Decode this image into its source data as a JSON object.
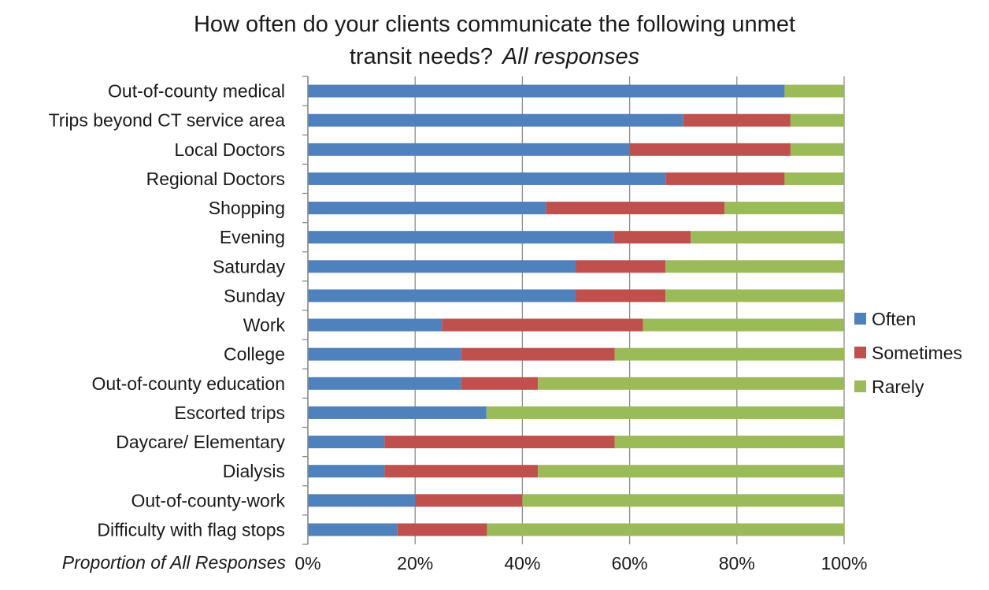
{
  "chart_data": {
    "type": "bar",
    "orientation": "horizontal",
    "stacked": true,
    "title": "How often do your clients communicate the following unmet transit needs?",
    "subtitle": "All responses",
    "xlabel": "Proportion of All Responses",
    "ylabel": "",
    "xlim": [
      0,
      1
    ],
    "x_ticks": [
      "0%",
      "20%",
      "40%",
      "60%",
      "80%",
      "100%"
    ],
    "grid": "vertical",
    "legend_position": "right",
    "categories": [
      "Out-of-county medical",
      "Trips beyond CT service area",
      "Local Doctors",
      "Regional Doctors",
      "Shopping",
      "Evening",
      "Saturday",
      "Sunday",
      "Work",
      "College",
      "Out-of-county education",
      "Escorted trips",
      "Daycare/ Elementary",
      "Dialysis",
      "Out-of-county-work",
      "Difficulty with flag stops"
    ],
    "series": [
      {
        "name": "Often",
        "color": "#4f81bd",
        "values": [
          0.889,
          0.7,
          0.6,
          0.667,
          0.444,
          0.571,
          0.5,
          0.5,
          0.25,
          0.286,
          0.286,
          0.333,
          0.143,
          0.143,
          0.2,
          0.167
        ]
      },
      {
        "name": "Sometimes",
        "color": "#c0504d",
        "values": [
          0.0,
          0.2,
          0.3,
          0.222,
          0.333,
          0.143,
          0.167,
          0.167,
          0.375,
          0.286,
          0.143,
          0.0,
          0.429,
          0.286,
          0.2,
          0.167
        ]
      },
      {
        "name": "Rarely",
        "color": "#9bbb59",
        "values": [
          0.111,
          0.1,
          0.1,
          0.111,
          0.222,
          0.286,
          0.333,
          0.333,
          0.375,
          0.429,
          0.571,
          0.667,
          0.429,
          0.571,
          0.6,
          0.667
        ]
      }
    ]
  }
}
